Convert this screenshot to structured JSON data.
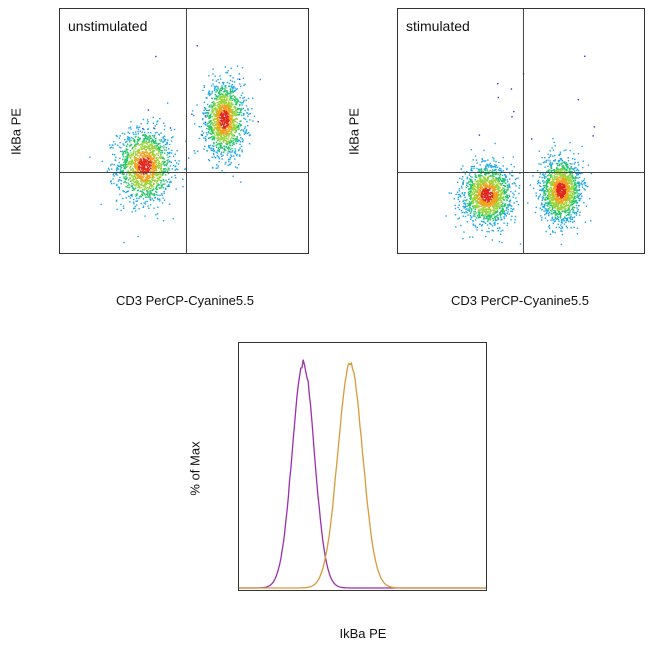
{
  "chart_data": [
    {
      "type": "scatter",
      "panel_label": "unstimulated",
      "xlabel": "CD3 PerCP-Cyanine5.5",
      "ylabel": "IkBa PE",
      "x_range": [
        0,
        1
      ],
      "y_range": [
        0,
        1
      ],
      "quadrant_divider": {
        "x": 0.51,
        "y": 0.33
      },
      "populations": [
        {
          "center": [
            0.34,
            0.36
          ],
          "spread": [
            0.055,
            0.075
          ],
          "n": 1500
        },
        {
          "center": [
            0.66,
            0.55
          ],
          "spread": [
            0.04,
            0.075
          ],
          "n": 1400
        }
      ]
    },
    {
      "type": "scatter",
      "panel_label": "stimulated",
      "xlabel": "CD3 PerCP-Cyanine5.5",
      "ylabel": "IkBa PE",
      "x_range": [
        0,
        1
      ],
      "y_range": [
        0,
        1
      ],
      "quadrant_divider": {
        "x": 0.51,
        "y": 0.33
      },
      "populations": [
        {
          "center": [
            0.36,
            0.24
          ],
          "spread": [
            0.05,
            0.06
          ],
          "n": 1500
        },
        {
          "center": [
            0.66,
            0.26
          ],
          "spread": [
            0.04,
            0.065
          ],
          "n": 1500
        }
      ]
    },
    {
      "type": "line",
      "xlabel": "IkBa PE",
      "ylabel": "% of Max",
      "x_range": [
        0,
        1
      ],
      "y_range": [
        0,
        100
      ],
      "series": [
        {
          "color": "#9b2fae",
          "peak_x": 0.26,
          "width": 0.045
        },
        {
          "color": "#d89a3a",
          "peak_x": 0.45,
          "width": 0.05
        }
      ]
    }
  ]
}
